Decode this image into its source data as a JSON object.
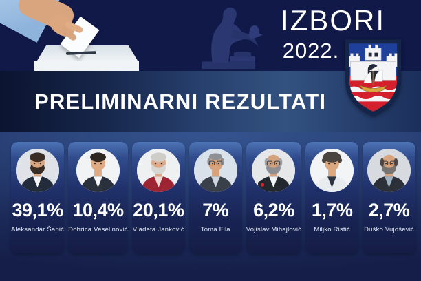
{
  "header": {
    "title": "IZBORI",
    "year": "2022.",
    "banner": "PRELIMINARNI REZULTATI"
  },
  "scene": {
    "ballot_photo": "hand-casting-ballot-into-white-ballot-box",
    "statue": "pobednik-monument-silhouette",
    "emblem": "belgrade-coat-of-arms"
  },
  "colors": {
    "background_navy": "#101947",
    "band_steel_blue": "#33527f",
    "panel_blue": "#35548f",
    "card_navy": "#182352",
    "text_white": "#ffffff",
    "emblem_blue": "#1e3f9a",
    "emblem_red": "#d41f2c",
    "emblem_castle": "#f4f4f6",
    "emblem_boat_gold": "#d9a43a"
  },
  "results": {
    "candidates": [
      {
        "pct": "39,1%",
        "name": "Aleksandar Šapić",
        "avatar": {
          "bg": "#dfe3e8",
          "skin": "#d9a57e",
          "hair": "#3a2d26",
          "style": "full",
          "beard": "#382c25",
          "top": "#232c3a",
          "shirt": "#f5f6f8",
          "glasses": false,
          "mic": false
        }
      },
      {
        "pct": "10,4%",
        "name": "Dobrica Veselinović",
        "avatar": {
          "bg": "#f1f3f5",
          "skin": "#e0ab82",
          "hair": "#2e2620",
          "style": "full",
          "beard": null,
          "top": "#2a313c",
          "shirt": "#f7f8fa",
          "glasses": false,
          "mic": false
        }
      },
      {
        "pct": "20,1%",
        "name": "Vladeta Janković",
        "avatar": {
          "bg": "#eef0f2",
          "skin": "#dfa886",
          "hair": "#cfcdc8",
          "style": "full",
          "beard": "#d8d6d1",
          "top": "#9c2433",
          "shirt": "#ecdcd6",
          "glasses": false,
          "mic": false
        }
      },
      {
        "pct": "7%",
        "name": "Toma Fila",
        "avatar": {
          "bg": "#d9e2ea",
          "skin": "#d8a27a",
          "hair": "#8d9094",
          "style": "receding",
          "beard": null,
          "top": "#3a4049",
          "shirt": "#cfd6dd",
          "glasses": true,
          "mic": false
        }
      },
      {
        "pct": "6,2%",
        "name": "Vojislav Mihajlović",
        "avatar": {
          "bg": "#e6e7e9",
          "skin": "#d3a27e",
          "hair": "#9fa2a6",
          "style": "bald",
          "beard": "#8e9094",
          "top": "#23272e",
          "shirt": "#f2f3f5",
          "glasses": true,
          "mic": true
        }
      },
      {
        "pct": "1,7%",
        "name": "Miljko Ristić",
        "avatar": {
          "bg": "#f3f4f5",
          "skin": "#dba87f",
          "hair": "#49453e",
          "style": "messy",
          "beard": null,
          "top": "#e9ecee",
          "shirt": "#2c3340",
          "glasses": false,
          "mic": false
        }
      },
      {
        "pct": "2,7%",
        "name": "Duško Vujošević",
        "avatar": {
          "bg": "#d7dbdf",
          "skin": "#d6a47e",
          "hair": "#4e4a46",
          "style": "bald",
          "beard": "#77736e",
          "top": "#2c3038",
          "shirt": "#9fb0c0",
          "glasses": true,
          "mic": false
        }
      }
    ]
  },
  "chart_data": {
    "type": "table",
    "title": "PRELIMINARNI REZULTATI",
    "subtitle": "IZBORI 2022.",
    "categories": [
      "Aleksandar Šapić",
      "Dobrica Veselinović",
      "Vladeta Janković",
      "Toma Fila",
      "Vojislav Mihajlović",
      "Miljko Ristić",
      "Duško Vujošević"
    ],
    "values": [
      39.1,
      10.4,
      20.1,
      7,
      6.2,
      1.7,
      2.7
    ],
    "unit": "%"
  }
}
